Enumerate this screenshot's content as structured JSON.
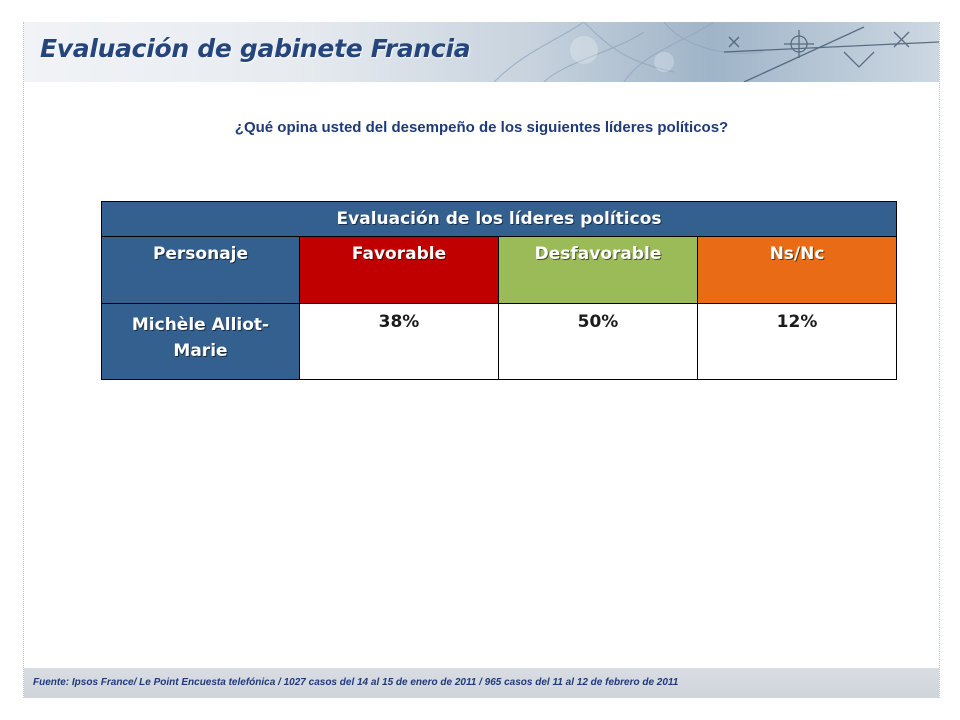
{
  "header": {
    "title": "Evaluación de gabinete Francia"
  },
  "question": "¿Qué opina usted del desempeño de los siguientes líderes políticos?",
  "table": {
    "title": "Evaluación de los líderes políticos",
    "columns": [
      "Personaje",
      "Favorable",
      "Desfavorable",
      "Ns/Nc"
    ],
    "column_colors": [
      "#34608f",
      "#c00000",
      "#9bbb59",
      "#ea6b16"
    ],
    "rows": [
      {
        "name_line1": "Michèle Alliot-",
        "name_line2": "Marie",
        "favorable": "38%",
        "desfavorable": "50%",
        "nsnc": "12%"
      }
    ]
  },
  "footer": {
    "source": "Fuente:  Ipsos France/ Le Point Encuesta telefónica / 1027 casos del 14 al 15 de enero de 2011 / 965 casos del 11 al 12 de febrero de 2011"
  }
}
